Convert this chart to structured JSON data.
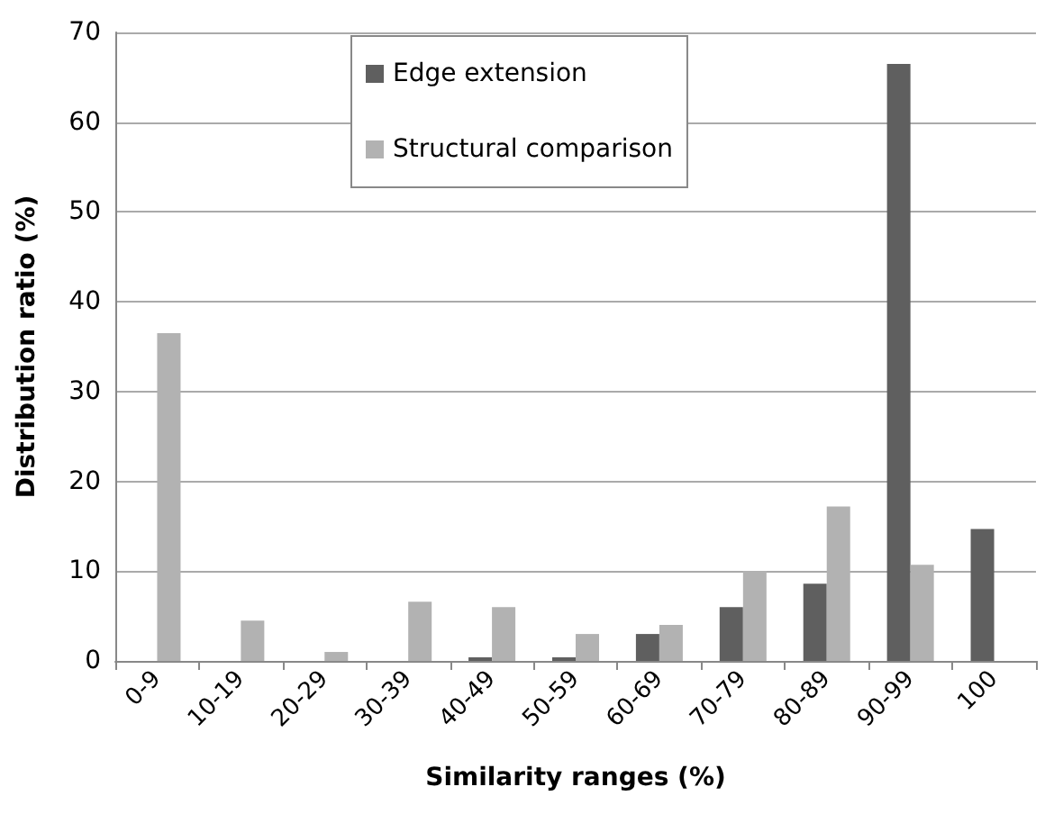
{
  "chart_data": {
    "type": "bar",
    "xlabel": "Similarity ranges (%)",
    "ylabel": "Distribution ratio (%)",
    "categories": [
      "0-9",
      "10-19",
      "20-29",
      "30-39",
      "40-49",
      "50-59",
      "60-69",
      "70-79",
      "80-89",
      "90-99",
      "100"
    ],
    "series": [
      {
        "name": "Edge extension",
        "color": "#5f5f5f",
        "values": [
          0,
          0,
          0,
          0,
          0.4,
          0.4,
          3,
          6,
          8.6,
          66.5,
          14.7
        ]
      },
      {
        "name": "Structural comparison",
        "color": "#b2b2b2",
        "values": [
          36.5,
          4.5,
          1,
          6.6,
          6,
          3,
          4,
          10,
          17.2,
          10.7,
          0
        ]
      }
    ],
    "ylim": [
      0,
      70
    ],
    "yticks": [
      0,
      10,
      20,
      30,
      40,
      50,
      60,
      70
    ],
    "grid": "y",
    "legend": "top"
  }
}
